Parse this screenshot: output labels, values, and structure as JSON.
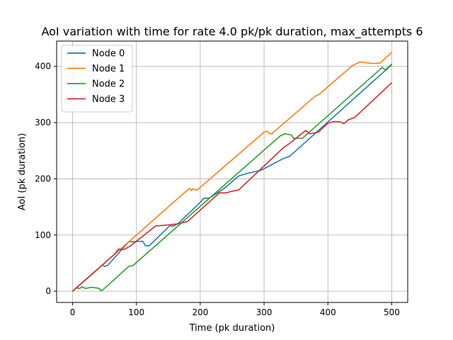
{
  "chart_data": {
    "type": "line",
    "title": "AoI variation with time for rate 4.0 pk/pk duration, max_attempts 6",
    "xlabel": "Time (pk duration)",
    "ylabel": "AoI (pk duration)",
    "xlim": [
      -25,
      525
    ],
    "ylim": [
      -20,
      445
    ],
    "xticks": [
      0,
      100,
      200,
      300,
      400,
      500
    ],
    "yticks": [
      0,
      100,
      200,
      300,
      400
    ],
    "grid": true,
    "legend_position": "upper-left",
    "series": [
      {
        "name": "Node 0",
        "color": "#1f77b4",
        "points": [
          [
            0,
            0
          ],
          [
            47,
            47
          ],
          [
            50,
            44
          ],
          [
            55,
            46
          ],
          [
            88,
            88
          ],
          [
            96,
            88
          ],
          [
            110,
            89
          ],
          [
            114,
            81
          ],
          [
            120,
            81
          ],
          [
            152,
            116
          ],
          [
            158,
            116
          ],
          [
            165,
            120
          ],
          [
            200,
            158
          ],
          [
            205,
            165
          ],
          [
            215,
            166
          ],
          [
            240,
            185
          ],
          [
            260,
            205
          ],
          [
            275,
            210
          ],
          [
            295,
            215
          ],
          [
            330,
            236
          ],
          [
            340,
            240
          ],
          [
            500,
            403
          ]
        ]
      },
      {
        "name": "Node 1",
        "color": "#ff7f0e",
        "points": [
          [
            0,
            0
          ],
          [
            183,
            183
          ],
          [
            186,
            179
          ],
          [
            188,
            182
          ],
          [
            195,
            180
          ],
          [
            300,
            283
          ],
          [
            305,
            285
          ],
          [
            309,
            280
          ],
          [
            312,
            280
          ],
          [
            380,
            347
          ],
          [
            386,
            350
          ],
          [
            438,
            401
          ],
          [
            450,
            408
          ],
          [
            470,
            405
          ],
          [
            482,
            406
          ],
          [
            500,
            425
          ]
        ]
      },
      {
        "name": "Node 2",
        "color": "#2ca02c",
        "points": [
          [
            0,
            0
          ],
          [
            6,
            6
          ],
          [
            11,
            5
          ],
          [
            15,
            8
          ],
          [
            20,
            5
          ],
          [
            30,
            7
          ],
          [
            42,
            5
          ],
          [
            44,
            1
          ],
          [
            46,
            1
          ],
          [
            88,
            44
          ],
          [
            95,
            46
          ],
          [
            325,
            276
          ],
          [
            332,
            280
          ],
          [
            343,
            278
          ],
          [
            346,
            272
          ],
          [
            360,
            272
          ],
          [
            485,
            398
          ],
          [
            490,
            394
          ],
          [
            500,
            404
          ]
        ]
      },
      {
        "name": "Node 3",
        "color": "#d62728",
        "points": [
          [
            0,
            0
          ],
          [
            65,
            65
          ],
          [
            72,
            75
          ],
          [
            80,
            74
          ],
          [
            90,
            80
          ],
          [
            130,
            116
          ],
          [
            150,
            118
          ],
          [
            165,
            120
          ],
          [
            180,
            124
          ],
          [
            230,
            175
          ],
          [
            240,
            175
          ],
          [
            250,
            178
          ],
          [
            260,
            180
          ],
          [
            330,
            255
          ],
          [
            340,
            263
          ],
          [
            365,
            286
          ],
          [
            372,
            280
          ],
          [
            385,
            283
          ],
          [
            400,
            299
          ],
          [
            410,
            302
          ],
          [
            420,
            301
          ],
          [
            425,
            298
          ],
          [
            432,
            305
          ],
          [
            442,
            309
          ],
          [
            500,
            371
          ]
        ]
      }
    ]
  }
}
